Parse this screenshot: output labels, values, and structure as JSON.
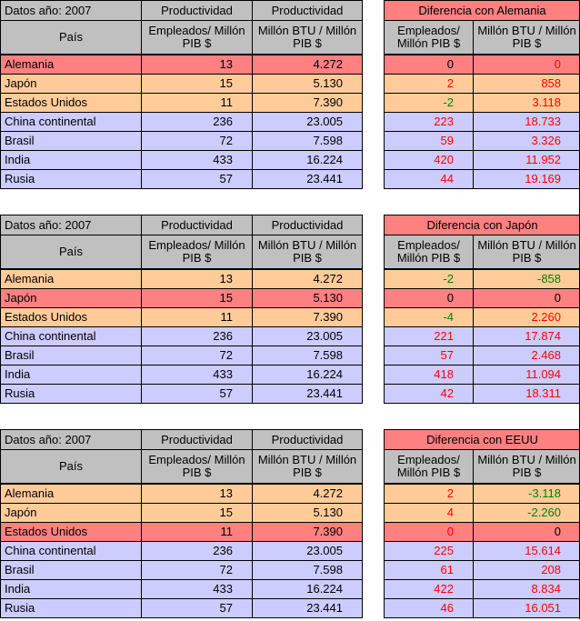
{
  "headers": {
    "year_label": "Datos año: 2007",
    "country_label": "País",
    "productivity": "Productividad",
    "employees_unit": "Empleados/ Millón PIB $",
    "btu_unit": "Millón BTU / Millón PIB $",
    "diff_employees_unit": "Empleados/ Millón PIB $",
    "diff_btu_unit": "Millón BTU / Millón PIB $"
  },
  "colors": {
    "base": "#ff8080",
    "peer": "#ffcc99",
    "emerging": "#ccccff",
    "header": "#c0c0c0",
    "positive": "#ff0000",
    "negative": "#008000"
  },
  "tables": [
    {
      "diff_title": "Diferencia con Alemania",
      "rows": [
        {
          "type": "base",
          "country": "Alemania",
          "employees": "13",
          "btu": "4.272",
          "diff_employees": "0",
          "diff_employees_color": "black",
          "diff_btu": "0",
          "diff_btu_color": "red"
        },
        {
          "type": "peer",
          "country": "Japón",
          "employees": "15",
          "btu": "5.130",
          "diff_employees": "2",
          "diff_employees_color": "red",
          "diff_btu": "858",
          "diff_btu_color": "red"
        },
        {
          "type": "peer",
          "country": "Estados Unidos",
          "employees": "11",
          "btu": "7.390",
          "diff_employees": "-2",
          "diff_employees_color": "green",
          "diff_btu": "3.118",
          "diff_btu_color": "red"
        },
        {
          "type": "emer",
          "country": "China continental",
          "employees": "236",
          "btu": "23.005",
          "diff_employees": "223",
          "diff_employees_color": "red",
          "diff_btu": "18.733",
          "diff_btu_color": "red"
        },
        {
          "type": "emer",
          "country": "Brasil",
          "employees": "72",
          "btu": "7.598",
          "diff_employees": "59",
          "diff_employees_color": "red",
          "diff_btu": "3.326",
          "diff_btu_color": "red"
        },
        {
          "type": "emer",
          "country": "India",
          "employees": "433",
          "btu": "16.224",
          "diff_employees": "420",
          "diff_employees_color": "red",
          "diff_btu": "11.952",
          "diff_btu_color": "red"
        },
        {
          "type": "emer",
          "country": "Rusia",
          "employees": "57",
          "btu": "23.441",
          "diff_employees": "44",
          "diff_employees_color": "red",
          "diff_btu": "19.169",
          "diff_btu_color": "red"
        }
      ]
    },
    {
      "diff_title": "Diferencia con Japón",
      "rows": [
        {
          "type": "peer",
          "country": "Alemania",
          "employees": "13",
          "btu": "4.272",
          "diff_employees": "-2",
          "diff_employees_color": "green",
          "diff_btu": "-858",
          "diff_btu_color": "green"
        },
        {
          "type": "base",
          "country": "Japón",
          "employees": "15",
          "btu": "5.130",
          "diff_employees": "0",
          "diff_employees_color": "black",
          "diff_btu": "0",
          "diff_btu_color": "black"
        },
        {
          "type": "peer",
          "country": "Estados Unidos",
          "employees": "11",
          "btu": "7.390",
          "diff_employees": "-4",
          "diff_employees_color": "green",
          "diff_btu": "2.260",
          "diff_btu_color": "red"
        },
        {
          "type": "emer",
          "country": "China continental",
          "employees": "236",
          "btu": "23.005",
          "diff_employees": "221",
          "diff_employees_color": "red",
          "diff_btu": "17.874",
          "diff_btu_color": "red"
        },
        {
          "type": "emer",
          "country": "Brasil",
          "employees": "72",
          "btu": "7.598",
          "diff_employees": "57",
          "diff_employees_color": "red",
          "diff_btu": "2.468",
          "diff_btu_color": "red"
        },
        {
          "type": "emer",
          "country": "India",
          "employees": "433",
          "btu": "16.224",
          "diff_employees": "418",
          "diff_employees_color": "red",
          "diff_btu": "11.094",
          "diff_btu_color": "red"
        },
        {
          "type": "emer",
          "country": "Rusia",
          "employees": "57",
          "btu": "23.441",
          "diff_employees": "42",
          "diff_employees_color": "red",
          "diff_btu": "18.311",
          "diff_btu_color": "red"
        }
      ]
    },
    {
      "diff_title": "Diferencia con EEUU",
      "rows": [
        {
          "type": "peer",
          "country": "Alemania",
          "employees": "13",
          "btu": "4.272",
          "diff_employees": "2",
          "diff_employees_color": "red",
          "diff_btu": "-3.118",
          "diff_btu_color": "green"
        },
        {
          "type": "peer",
          "country": "Japón",
          "employees": "15",
          "btu": "5.130",
          "diff_employees": "4",
          "diff_employees_color": "red",
          "diff_btu": "-2.260",
          "diff_btu_color": "green"
        },
        {
          "type": "base",
          "country": "Estados Unidos",
          "employees": "11",
          "btu": "7.390",
          "diff_employees": "0",
          "diff_employees_color": "red",
          "diff_btu": "0",
          "diff_btu_color": "black"
        },
        {
          "type": "emer",
          "country": "China continental",
          "employees": "236",
          "btu": "23.005",
          "diff_employees": "225",
          "diff_employees_color": "red",
          "diff_btu": "15.614",
          "diff_btu_color": "red"
        },
        {
          "type": "emer",
          "country": "Brasil",
          "employees": "72",
          "btu": "7.598",
          "diff_employees": "61",
          "diff_employees_color": "red",
          "diff_btu": "208",
          "diff_btu_color": "red"
        },
        {
          "type": "emer",
          "country": "India",
          "employees": "433",
          "btu": "16.224",
          "diff_employees": "422",
          "diff_employees_color": "red",
          "diff_btu": "8.834",
          "diff_btu_color": "red"
        },
        {
          "type": "emer",
          "country": "Rusia",
          "employees": "57",
          "btu": "23.441",
          "diff_employees": "46",
          "diff_employees_color": "red",
          "diff_btu": "16.051",
          "diff_btu_color": "red"
        }
      ]
    }
  ]
}
